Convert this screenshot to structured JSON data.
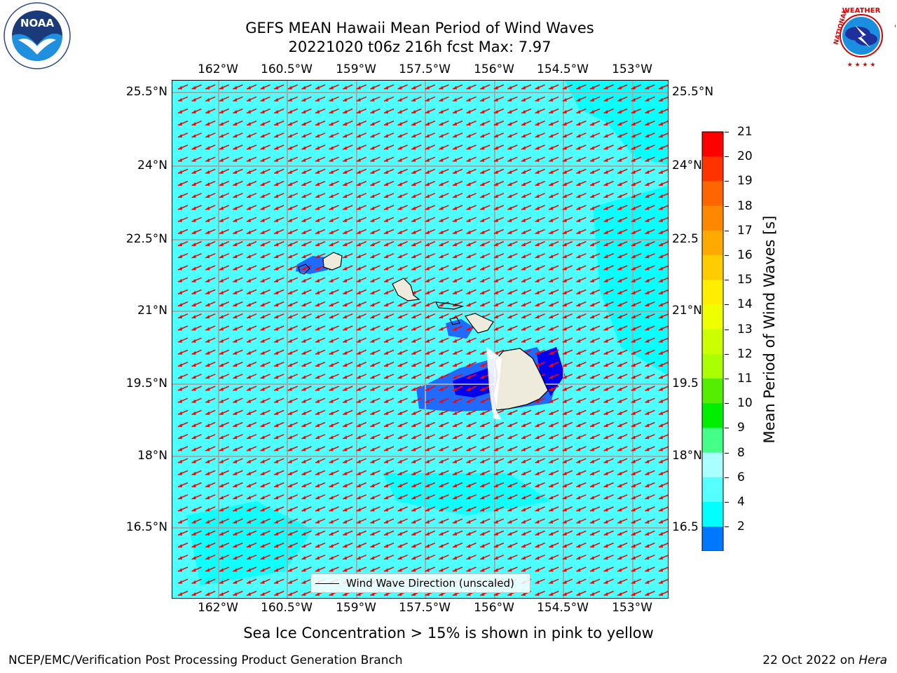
{
  "title": {
    "line1": "GEFS MEAN Hawaii Mean Period of Wind Waves",
    "line2": "20221020 t06z 216h fcst   Max: 7.97"
  },
  "logos": {
    "left": {
      "name": "NOAA",
      "ring_text": "NATIONAL OCEANIC AND ATMOSPHERIC ADMINISTRATION · U.S. DEPARTMENT OF COMMERCE"
    },
    "right": {
      "name": "NATIONAL WEATHER SERVICE"
    }
  },
  "map": {
    "lon_ticks": [
      "162°W",
      "160.5°W",
      "159°W",
      "157.5°W",
      "156°W",
      "154.5°W",
      "153°W"
    ],
    "lat_ticks": [
      "25.5°N",
      "24°N",
      "22.5°N",
      "21°N",
      "19.5°N",
      "18°N",
      "16.5°N"
    ],
    "right_lat_ticks": [
      "25.5°N",
      "24°N",
      "22.5",
      "21°N",
      "19.5",
      "18°N",
      "16.5"
    ],
    "ocean_color": "#4dffff",
    "arrow_color": "#ff0000",
    "land_color": "#efebdc",
    "vector_direction": "toward southwest"
  },
  "legend": {
    "label": "Wind Wave Direction (unscaled)"
  },
  "colorbar": {
    "label": "Mean Period of Wind Waves [s]",
    "ticks": [
      "21",
      "20",
      "19",
      "18",
      "17",
      "16",
      "15",
      "14",
      "13",
      "12",
      "11",
      "10",
      "9",
      "8",
      "6",
      "4",
      "2"
    ],
    "colors_top_to_bottom": [
      "#ff0000",
      "#ff3300",
      "#ff6600",
      "#ff8800",
      "#ffaa00",
      "#ffcc00",
      "#ffee00",
      "#eeff00",
      "#ccff00",
      "#aaff00",
      "#55ee00",
      "#00ee00",
      "#44ff88",
      "#aaffff",
      "#55ffff",
      "#00ffff",
      "#0077ff"
    ],
    "under_color": "#0000ff"
  },
  "footer": {
    "note": "Sea Ice Concentration > 15% is shown in pink to yellow",
    "credit_left": "NCEP/EMC/Verification Post Processing Product Generation Branch",
    "credit_date": "22 Oct 2022 on ",
    "credit_host": "Hera"
  }
}
